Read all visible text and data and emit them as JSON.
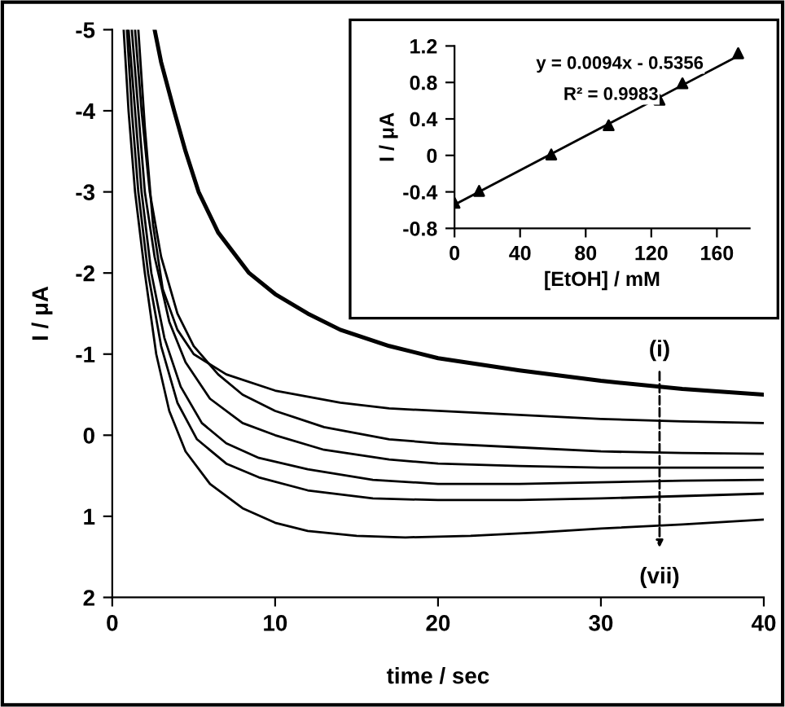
{
  "chart_data": [
    {
      "type": "line",
      "xlabel": "time / sec",
      "ylabel": "I / μA",
      "xlim": [
        0,
        40
      ],
      "xticks": [
        0,
        10,
        20,
        30,
        40
      ],
      "ylim": [
        2,
        -5
      ],
      "yticks": [
        -5,
        -4,
        -3,
        -2,
        -1,
        0,
        1,
        2
      ],
      "grid": false,
      "legend": false,
      "marker": "none",
      "line_style": "solid",
      "series": [
        {
          "color": "#000000",
          "x": [
            2.6,
            3.0,
            3.8,
            4.5,
            5.3,
            6.5,
            8.4,
            10,
            12,
            14,
            17,
            20,
            25,
            30,
            35,
            40
          ],
          "values": [
            -5,
            -4.6,
            -4,
            -3.5,
            -3,
            -2.5,
            -2,
            -1.74,
            -1.5,
            -1.3,
            -1.1,
            -0.95,
            -0.8,
            -0.67,
            -0.57,
            -0.5
          ]
        },
        {
          "color": "#000000",
          "x": [
            1.6,
            2,
            2.5,
            3.1,
            4,
            5,
            7,
            10,
            14,
            17,
            20,
            25,
            30,
            35,
            40
          ],
          "values": [
            -5,
            -3.8,
            -2.6,
            -1.8,
            -1.3,
            -1.0,
            -0.75,
            -0.55,
            -0.4,
            -0.33,
            -0.3,
            -0.25,
            -0.2,
            -0.17,
            -0.15
          ]
        },
        {
          "color": "#000000",
          "x": [
            1.4,
            1.8,
            2.3,
            3,
            4,
            5,
            6.5,
            8,
            10,
            13,
            17,
            20,
            25,
            30,
            35,
            40
          ],
          "values": [
            -5,
            -4,
            -3,
            -2.2,
            -1.5,
            -1.1,
            -0.75,
            -0.5,
            -0.3,
            -0.1,
            0.05,
            0.1,
            0.15,
            0.2,
            0.22,
            0.23
          ]
        },
        {
          "color": "#000000",
          "x": [
            1.2,
            1.6,
            2,
            2.6,
            3.5,
            4.5,
            6,
            8,
            10,
            13,
            17,
            20,
            25,
            30,
            40
          ],
          "values": [
            -5,
            -4,
            -3,
            -2.2,
            -1.4,
            -0.9,
            -0.45,
            -0.15,
            0.0,
            0.18,
            0.3,
            0.35,
            0.38,
            0.4,
            0.4
          ]
        },
        {
          "color": "#000000",
          "x": [
            1,
            1.4,
            1.8,
            2.4,
            3.2,
            4.2,
            5.5,
            7,
            9,
            12,
            16,
            20,
            25,
            30,
            35,
            40
          ],
          "values": [
            -5,
            -4,
            -3,
            -2,
            -1.2,
            -0.6,
            -0.15,
            0.1,
            0.28,
            0.42,
            0.55,
            0.6,
            0.6,
            0.58,
            0.56,
            0.55
          ]
        },
        {
          "color": "#000000",
          "x": [
            0.9,
            1.2,
            1.6,
            2.2,
            3,
            4,
            5.2,
            7,
            9,
            12,
            16,
            20,
            25,
            30,
            35,
            40
          ],
          "values": [
            -5,
            -4,
            -3,
            -2,
            -1.1,
            -0.4,
            0.05,
            0.35,
            0.52,
            0.68,
            0.78,
            0.8,
            0.8,
            0.78,
            0.75,
            0.72
          ]
        },
        {
          "color": "#000000",
          "x": [
            0.7,
            1,
            1.4,
            2,
            2.7,
            3.5,
            4.5,
            6,
            8,
            10,
            12,
            15,
            18,
            22,
            26,
            30,
            35,
            40
          ],
          "values": [
            -5,
            -4,
            -3,
            -2,
            -1,
            -0.3,
            0.2,
            0.6,
            0.9,
            1.08,
            1.18,
            1.24,
            1.26,
            1.24,
            1.2,
            1.15,
            1.1,
            1.04
          ]
        }
      ],
      "annotations": [
        "(i)",
        "(vii)"
      ]
    },
    {
      "type": "scatter",
      "xlabel": "[EtOH] / mM",
      "ylabel": "I / μA",
      "xlim": [
        0,
        180
      ],
      "xticks": [
        0,
        40,
        80,
        120,
        160
      ],
      "ylim": [
        -0.8,
        1.2
      ],
      "yticks": [
        -0.8,
        -0.4,
        0,
        0.4,
        0.8,
        1.2
      ],
      "grid": false,
      "legend": false,
      "series": [
        {
          "color": "#000000",
          "marker": "triangle",
          "x": [
            0,
            15,
            59,
            94,
            125,
            139,
            173
          ],
          "values": [
            -0.52,
            -0.39,
            0.01,
            0.33,
            0.61,
            0.79,
            1.12
          ]
        },
        {
          "type": "line",
          "color": "#000000",
          "x": [
            0,
            173
          ],
          "values": [
            -0.54,
            1.09
          ]
        }
      ],
      "annotations": [
        "y = 0.0094x - 0.5356",
        "R² = 0.9983"
      ]
    }
  ]
}
